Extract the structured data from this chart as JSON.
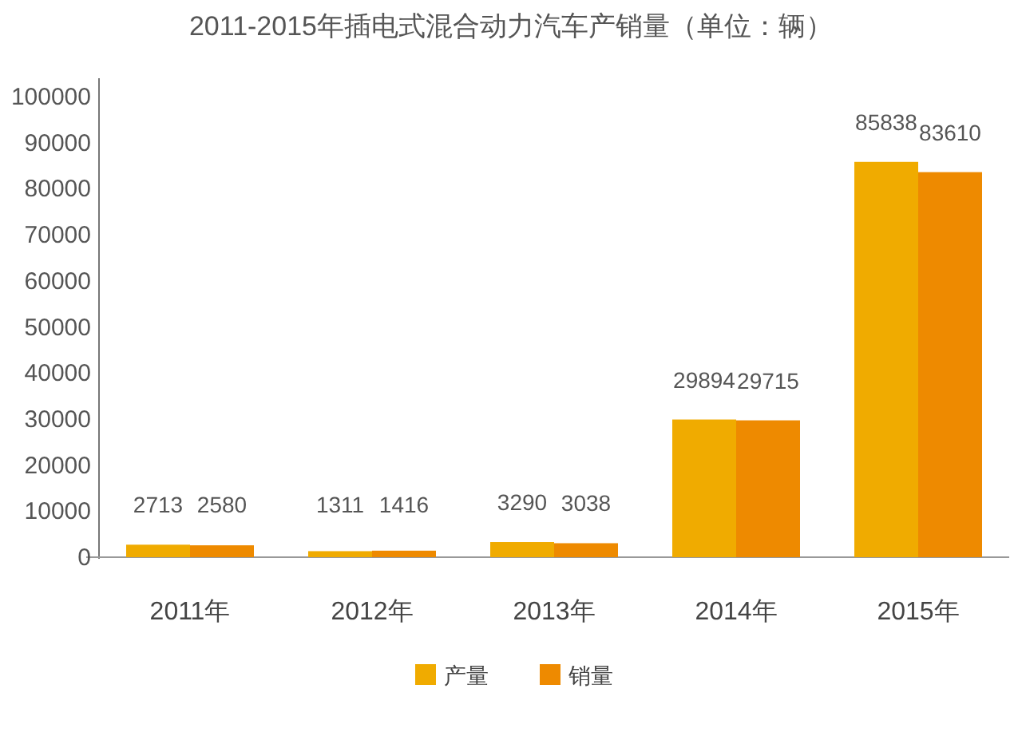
{
  "chart_data": {
    "type": "bar",
    "title": "2011-2015年插电式混合动力汽车产销量（单位：辆）",
    "categories": [
      "2011年",
      "2012年",
      "2013年",
      "2014年",
      "2015年"
    ],
    "series": [
      {
        "name": "产量",
        "color": "#f0ab00",
        "values": [
          2713,
          1311,
          3290,
          29894,
          85838
        ]
      },
      {
        "name": "销量",
        "color": "#ee8a00",
        "values": [
          2580,
          1416,
          3038,
          29715,
          83610
        ]
      }
    ],
    "ylim": [
      0,
      104000
    ],
    "yticks": [
      0,
      10000,
      20000,
      30000,
      40000,
      50000,
      60000,
      70000,
      80000,
      90000,
      100000
    ],
    "data_labels": true,
    "legend": "bottom",
    "grid": false
  }
}
